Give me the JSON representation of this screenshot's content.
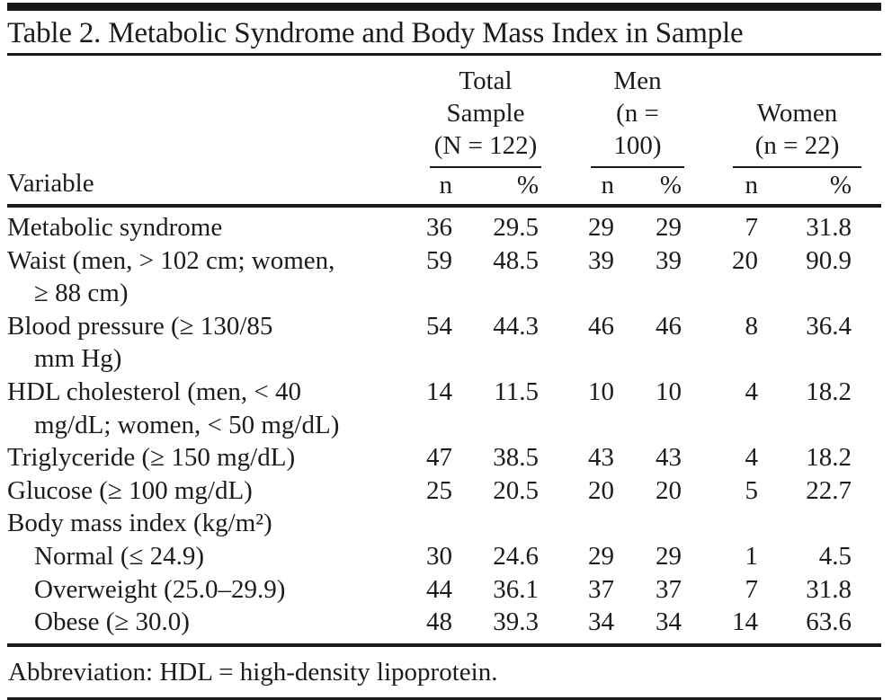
{
  "title": "Table 2. Metabolic Syndrome and Body Mass Index in Sample",
  "table": {
    "variable_header": "Variable",
    "groups": [
      {
        "lines": [
          "Total",
          "Sample",
          "(N = 122)"
        ]
      },
      {
        "lines": [
          "Men",
          "(n = 100)"
        ]
      },
      {
        "lines": [
          "Women",
          "(n = 22)"
        ]
      }
    ],
    "sub_headers": [
      "n",
      "%",
      "n",
      "%",
      "n",
      "%"
    ],
    "rows": [
      {
        "line1": "Metabolic syndrome",
        "values": [
          "36",
          "29.5",
          "29",
          "29",
          "7",
          "31.8"
        ]
      },
      {
        "line1": "Waist (men, > 102 cm; women,",
        "line2": "≥ 88 cm)",
        "values": [
          "59",
          "48.5",
          "39",
          "39",
          "20",
          "90.9"
        ]
      },
      {
        "line1": "Blood pressure (≥ 130/85",
        "line2": "mm Hg)",
        "values": [
          "54",
          "44.3",
          "46",
          "46",
          "8",
          "36.4"
        ]
      },
      {
        "line1": "HDL cholesterol (men, < 40",
        "line2": "mg/dL; women, < 50 mg/dL)",
        "values": [
          "14",
          "11.5",
          "10",
          "10",
          "4",
          "18.2"
        ]
      },
      {
        "line1": "Triglyceride (≥ 150 mg/dL)",
        "values": [
          "47",
          "38.5",
          "43",
          "43",
          "4",
          "18.2"
        ]
      },
      {
        "line1": "Glucose (≥ 100 mg/dL)",
        "values": [
          "25",
          "20.5",
          "20",
          "20",
          "5",
          "22.7"
        ]
      },
      {
        "line1": "Body mass index (kg/m²)",
        "values": [
          "",
          "",
          "",
          "",
          "",
          ""
        ]
      },
      {
        "line1": "Normal (≤ 24.9)",
        "indent": true,
        "values": [
          "30",
          "24.6",
          "29",
          "29",
          "1",
          "4.5"
        ]
      },
      {
        "line1": "Overweight (25.0–29.9)",
        "indent": true,
        "values": [
          "44",
          "36.1",
          "37",
          "37",
          "7",
          "31.8"
        ]
      },
      {
        "line1": "Obese (≥ 30.0)",
        "indent": true,
        "values": [
          "48",
          "39.3",
          "34",
          "34",
          "14",
          "63.6"
        ]
      }
    ]
  },
  "footnote": "Abbreviation: HDL = high-density lipoprotein."
}
